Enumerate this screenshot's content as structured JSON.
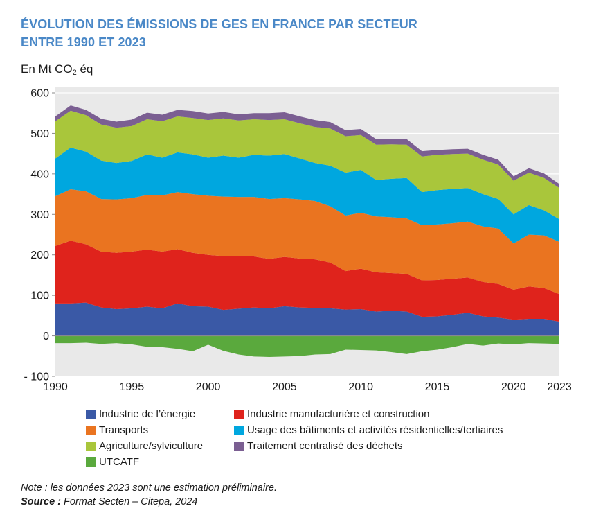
{
  "chart_data": {
    "type": "area",
    "stacked": true,
    "title_lines": [
      "ÉVOLUTION DES ÉMISSIONS DE GES EN FRANCE PAR SECTEUR",
      "ENTRE 1990 ET 2023"
    ],
    "ylabel": {
      "main": "En Mt CO",
      "sub": "2",
      "tail": " éq"
    },
    "xlim": [
      1990,
      2023
    ],
    "ylim": [
      -100,
      600
    ],
    "grid": true,
    "legend_position": "bottom",
    "x": [
      1990,
      1991,
      1992,
      1993,
      1994,
      1995,
      1996,
      1997,
      1998,
      1999,
      2000,
      2001,
      2002,
      2003,
      2004,
      2005,
      2006,
      2007,
      2008,
      2009,
      2010,
      2011,
      2012,
      2013,
      2014,
      2015,
      2016,
      2017,
      2018,
      2019,
      2020,
      2021,
      2022,
      2023
    ],
    "x_ticks": [
      {
        "value": 1990,
        "label": "1990"
      },
      {
        "value": 1995,
        "label": "1995"
      },
      {
        "value": 2000,
        "label": "2000"
      },
      {
        "value": 2005,
        "label": "2005"
      },
      {
        "value": 2010,
        "label": "2010"
      },
      {
        "value": 2015,
        "label": "2015"
      },
      {
        "value": 2020,
        "label": "2020"
      },
      {
        "value": 2023,
        "label": "2023"
      }
    ],
    "y_ticks": [
      {
        "value": 600,
        "label": "600"
      },
      {
        "value": 500,
        "label": "500"
      },
      {
        "value": 400,
        "label": "400"
      },
      {
        "value": 300,
        "label": "300"
      },
      {
        "value": 200,
        "label": "200"
      },
      {
        "value": 100,
        "label": "100"
      },
      {
        "value": 0,
        "label": "0"
      },
      {
        "value": -100,
        "label": "- 100"
      }
    ],
    "series": [
      {
        "name": "Industrie de l’énergie",
        "color": "#3a59a6",
        "values": [
          80,
          80,
          82,
          70,
          66,
          68,
          72,
          68,
          80,
          73,
          72,
          64,
          67,
          70,
          68,
          73,
          70,
          69,
          68,
          65,
          66,
          60,
          62,
          60,
          47,
          48,
          52,
          57,
          48,
          45,
          40,
          42,
          42,
          35
        ]
      },
      {
        "name": "Industrie manufacturière et construction",
        "color": "#df231c",
        "values": [
          142,
          155,
          144,
          138,
          139,
          140,
          141,
          140,
          134,
          132,
          128,
          133,
          129,
          126,
          122,
          122,
          121,
          120,
          113,
          95,
          100,
          97,
          93,
          93,
          90,
          90,
          89,
          87,
          85,
          83,
          74,
          80,
          76,
          68
        ]
      },
      {
        "name": "Transports",
        "color": "#ea7420",
        "values": [
          123,
          127,
          131,
          130,
          132,
          132,
          135,
          139,
          141,
          145,
          146,
          147,
          147,
          147,
          148,
          145,
          146,
          144,
          139,
          137,
          138,
          138,
          138,
          137,
          136,
          137,
          137,
          138,
          137,
          137,
          114,
          128,
          130,
          129
        ]
      },
      {
        "name": "Usage des bâtiments et activités résidentielles/tertiaires",
        "color": "#00a7df",
        "values": [
          93,
          103,
          98,
          95,
          90,
          92,
          100,
          93,
          98,
          98,
          94,
          101,
          97,
          104,
          107,
          109,
          101,
          94,
          100,
          106,
          106,
          90,
          95,
          100,
          82,
          85,
          85,
          83,
          80,
          73,
          72,
          73,
          62,
          56
        ]
      },
      {
        "name": "Agriculture/sylviculture",
        "color": "#a9c63b",
        "values": [
          92,
          91,
          90,
          89,
          87,
          86,
          87,
          90,
          89,
          90,
          93,
          92,
          92,
          88,
          88,
          86,
          87,
          89,
          92,
          90,
          86,
          87,
          85,
          82,
          88,
          87,
          86,
          85,
          85,
          85,
          83,
          80,
          80,
          77
        ]
      },
      {
        "name": "Traitement centralisé des déchets",
        "color": "#7b5f92",
        "values": [
          12,
          13,
          13,
          14,
          15,
          16,
          16,
          16,
          16,
          17,
          16,
          16,
          15,
          15,
          17,
          17,
          17,
          17,
          16,
          15,
          15,
          14,
          13,
          14,
          13,
          12,
          12,
          12,
          12,
          12,
          11,
          11,
          11,
          10
        ]
      },
      {
        "name": "UTCATF",
        "color": "#5aa93d",
        "values": [
          -18,
          -18,
          -17,
          -20,
          -18,
          -21,
          -27,
          -28,
          -32,
          -38,
          -22,
          -37,
          -46,
          -51,
          -52,
          -51,
          -50,
          -46,
          -45,
          -34,
          -35,
          -36,
          -40,
          -45,
          -38,
          -34,
          -28,
          -20,
          -24,
          -19,
          -21,
          -18,
          -19,
          -20
        ]
      }
    ]
  },
  "footnotes": {
    "note": "Note : les données 2023 sont une estimation préliminaire.",
    "source_label": "Source :",
    "source_text": " Format Secten – Citepa, 2024"
  },
  "colors": {
    "title": "#4a88c7",
    "plot_background": "#e9e9e9",
    "gridline": "#ffffff"
  }
}
